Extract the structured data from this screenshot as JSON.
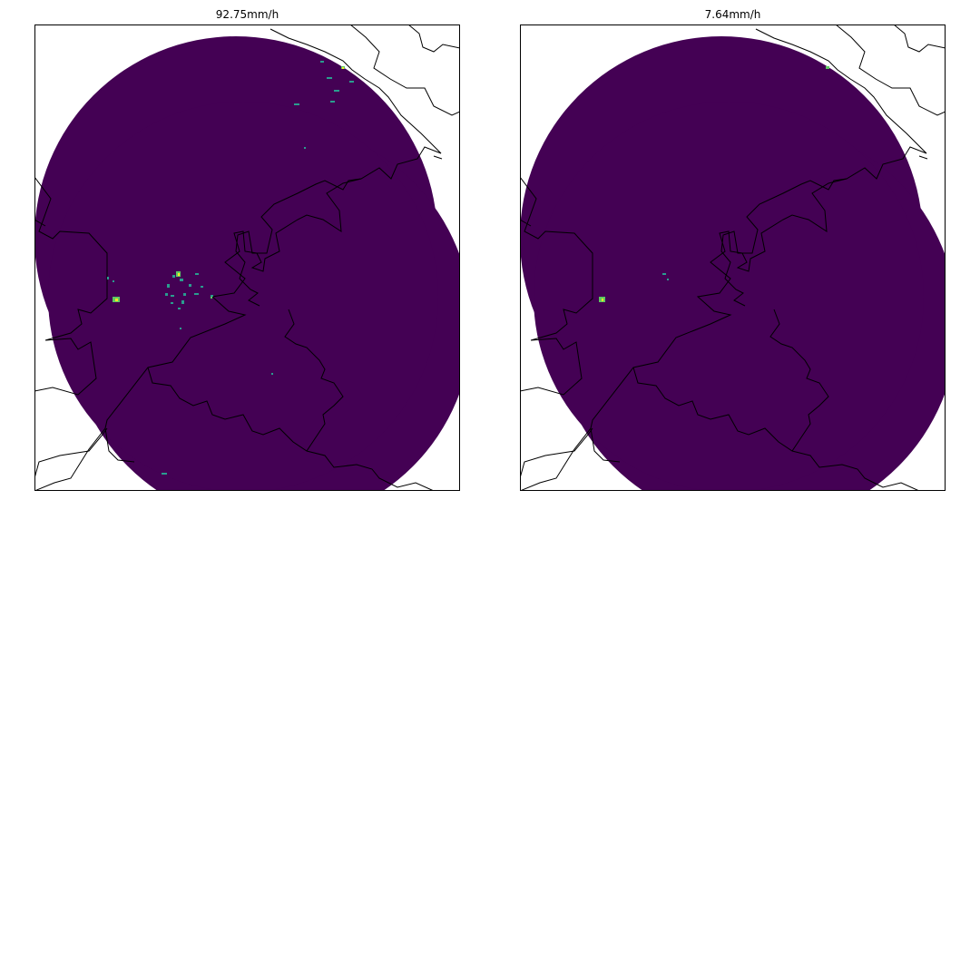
{
  "figure": {
    "panels": [
      {
        "title": "92.75mm/h"
      },
      {
        "title": "7.64mm/h"
      }
    ]
  },
  "colors": {
    "background_field": "#440154",
    "coastline": "#000000",
    "frame": "#000000",
    "echo_low": "#2a9d8f",
    "echo_mid": "#5ec962",
    "echo_high": "#fde725"
  }
}
